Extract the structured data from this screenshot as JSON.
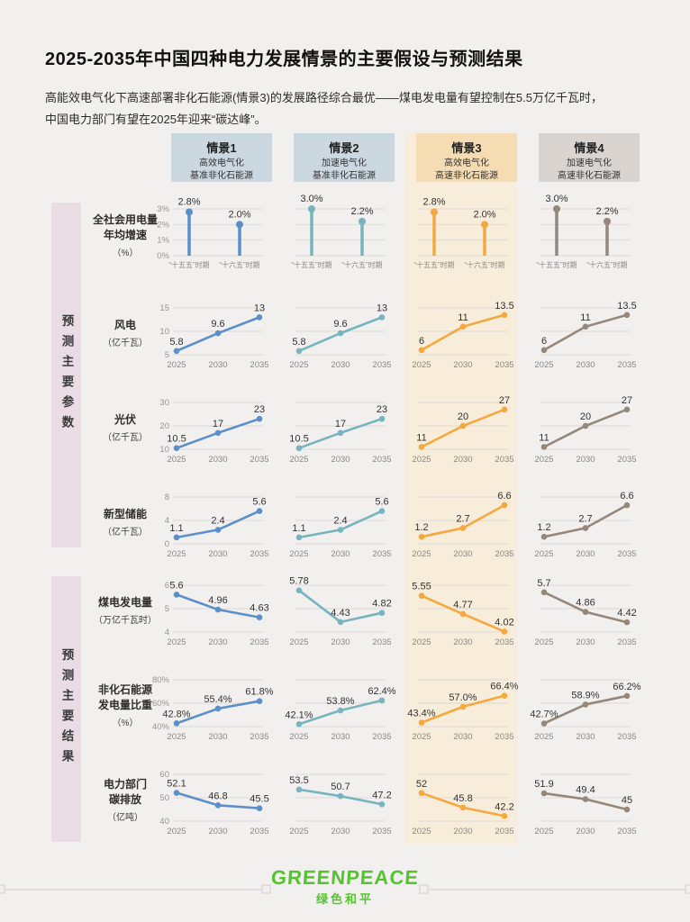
{
  "page": {
    "title": "2025-2035年中国四种电力发展情景的主要假设与预测结果",
    "subtitle_line1": "高能效电气化下高速部署非化石能源(情景3)的发展路径综合最优——煤电发电量有望控制在5.5万亿千瓦时，",
    "subtitle_line2": "中国电力部门有望在2025年迎来“碳达峰”。"
  },
  "colors": {
    "page_bg": "#f2f0ee",
    "scenario3_column_bg": "#f7edda",
    "section_band_bg": "#e9dce4",
    "gridline": "#ddd9d4",
    "value_label": "#333333",
    "logo_green": "#55c32f"
  },
  "scenarios": [
    {
      "label": "情景1",
      "line1": "高效电气化",
      "line2": "基准非化石能源",
      "color": "#5b8fc9",
      "header_bg": "#ccd8e0",
      "highlighted": false
    },
    {
      "label": "情景2",
      "line1": "加速电气化",
      "line2": "基准非化石能源",
      "color": "#76b4bf",
      "header_bg": "#ccd8e0",
      "highlighted": false
    },
    {
      "label": "情景3",
      "line1": "高效电气化",
      "line2": "高速非化石能源",
      "color": "#f4a83e",
      "header_bg": "#f5dcb2",
      "highlighted": true
    },
    {
      "label": "情景4",
      "line1": "加速电气化",
      "line2": "高速非化石能源",
      "color": "#95877a",
      "header_bg": "#d9d4d0",
      "highlighted": false
    }
  ],
  "sections": [
    {
      "label": "预测主要参数"
    },
    {
      "label": "预测主要结果"
    }
  ],
  "footer": {
    "logo_text": "GREENPEACE",
    "logo_subtext": "绿色和平"
  },
  "chart_data": [
    {
      "id": "electricity-demand-growth",
      "type": "lollipop",
      "name_lines": [
        "全社会用电量",
        "年均增速"
      ],
      "unit": "（%）",
      "categories": [
        "“十五五”时期",
        "“十六五”时期"
      ],
      "yticks": {
        "values": [
          0,
          1,
          2,
          3
        ],
        "labels": [
          "0%",
          "1%",
          "2%",
          "3%"
        ]
      },
      "series": [
        {
          "scenario": "情景1",
          "values": [
            2.8,
            2.0
          ],
          "labels": [
            "2.8%",
            "2.0%"
          ]
        },
        {
          "scenario": "情景2",
          "values": [
            3.0,
            2.2
          ],
          "labels": [
            "3.0%",
            "2.2%"
          ]
        },
        {
          "scenario": "情景3",
          "values": [
            2.8,
            2.0
          ],
          "labels": [
            "2.8%",
            "2.0%"
          ]
        },
        {
          "scenario": "情景4",
          "values": [
            3.0,
            2.2
          ],
          "labels": [
            "3.0%",
            "2.2%"
          ]
        }
      ]
    },
    {
      "id": "wind-power",
      "type": "line",
      "name_lines": [
        "风电"
      ],
      "unit": "（亿千瓦）",
      "categories": [
        "2025",
        "2030",
        "2035"
      ],
      "yticks": {
        "values": [
          5,
          10,
          15
        ],
        "labels": [
          "5",
          "10",
          "15"
        ]
      },
      "series": [
        {
          "scenario": "情景1",
          "values": [
            5.8,
            9.6,
            13
          ],
          "labels": [
            "5.8",
            "9.6",
            "13"
          ]
        },
        {
          "scenario": "情景2",
          "values": [
            5.8,
            9.6,
            13
          ],
          "labels": [
            "5.8",
            "9.6",
            "13"
          ]
        },
        {
          "scenario": "情景3",
          "values": [
            6,
            11,
            13.5
          ],
          "labels": [
            "6",
            "11",
            "13.5"
          ]
        },
        {
          "scenario": "情景4",
          "values": [
            6,
            11,
            13.5
          ],
          "labels": [
            "6",
            "11",
            "13.5"
          ]
        }
      ]
    },
    {
      "id": "solar-pv",
      "type": "line",
      "name_lines": [
        "光伏"
      ],
      "unit": "（亿千瓦）",
      "categories": [
        "2025",
        "2030",
        "2035"
      ],
      "yticks": {
        "values": [
          10,
          20,
          30
        ],
        "labels": [
          "10",
          "20",
          "30"
        ]
      },
      "series": [
        {
          "scenario": "情景1",
          "values": [
            10.5,
            17,
            23
          ],
          "labels": [
            "10.5",
            "17",
            "23"
          ]
        },
        {
          "scenario": "情景2",
          "values": [
            10.5,
            17,
            23
          ],
          "labels": [
            "10.5",
            "17",
            "23"
          ]
        },
        {
          "scenario": "情景3",
          "values": [
            11,
            20,
            27
          ],
          "labels": [
            "11",
            "20",
            "27"
          ]
        },
        {
          "scenario": "情景4",
          "values": [
            11,
            20,
            27
          ],
          "labels": [
            "11",
            "20",
            "27"
          ]
        }
      ]
    },
    {
      "id": "new-energy-storage",
      "type": "line",
      "name_lines": [
        "新型储能"
      ],
      "unit": "（亿千瓦）",
      "categories": [
        "2025",
        "2030",
        "2035"
      ],
      "yticks": {
        "values": [
          0,
          4,
          8
        ],
        "labels": [
          "0",
          "4",
          "8"
        ]
      },
      "series": [
        {
          "scenario": "情景1",
          "values": [
            1.1,
            2.4,
            5.6
          ],
          "labels": [
            "1.1",
            "2.4",
            "5.6"
          ]
        },
        {
          "scenario": "情景2",
          "values": [
            1.1,
            2.4,
            5.6
          ],
          "labels": [
            "1.1",
            "2.4",
            "5.6"
          ]
        },
        {
          "scenario": "情景3",
          "values": [
            1.2,
            2.7,
            6.6
          ],
          "labels": [
            "1.2",
            "2.7",
            "6.6"
          ]
        },
        {
          "scenario": "情景4",
          "values": [
            1.2,
            2.7,
            6.6
          ],
          "labels": [
            "1.2",
            "2.7",
            "6.6"
          ]
        }
      ]
    },
    {
      "id": "coal-power-generation",
      "type": "line",
      "name_lines": [
        "煤电发电量"
      ],
      "unit": "（万亿千瓦时）",
      "categories": [
        "2025",
        "2030",
        "2035"
      ],
      "yticks": {
        "values": [
          4,
          5,
          6
        ],
        "labels": [
          "4",
          "5",
          "6"
        ]
      },
      "series": [
        {
          "scenario": "情景1",
          "values": [
            5.6,
            4.96,
            4.63
          ],
          "labels": [
            "5.6",
            "4.96",
            "4.63"
          ]
        },
        {
          "scenario": "情景2",
          "values": [
            5.78,
            4.43,
            4.82
          ],
          "labels": [
            "5.78",
            "4.43",
            "4.82"
          ]
        },
        {
          "scenario": "情景3",
          "values": [
            5.55,
            4.77,
            4.02
          ],
          "labels": [
            "5.55",
            "4.77",
            "4.02"
          ]
        },
        {
          "scenario": "情景4",
          "values": [
            5.7,
            4.86,
            4.42
          ],
          "labels": [
            "5.7",
            "4.86",
            "4.42"
          ]
        }
      ]
    },
    {
      "id": "non-fossil-generation-share",
      "type": "line",
      "name_lines": [
        "非化石能源",
        "发电量比重"
      ],
      "unit": "（%）",
      "categories": [
        "2025",
        "2030",
        "2035"
      ],
      "yticks": {
        "values": [
          40,
          60,
          80
        ],
        "labels": [
          "40%",
          "60%",
          "80%"
        ]
      },
      "series": [
        {
          "scenario": "情景1",
          "values": [
            42.8,
            55.4,
            61.8
          ],
          "labels": [
            "42.8%",
            "55.4%",
            "61.8%"
          ]
        },
        {
          "scenario": "情景2",
          "values": [
            42.1,
            53.8,
            62.4
          ],
          "labels": [
            "42.1%",
            "53.8%",
            "62.4%"
          ]
        },
        {
          "scenario": "情景3",
          "values": [
            43.4,
            57.0,
            66.4
          ],
          "labels": [
            "43.4%",
            "57.0%",
            "66.4%"
          ]
        },
        {
          "scenario": "情景4",
          "values": [
            42.7,
            58.9,
            66.2
          ],
          "labels": [
            "42.7%",
            "58.9%",
            "66.2%"
          ]
        }
      ]
    },
    {
      "id": "power-sector-carbon-emissions",
      "type": "line",
      "name_lines": [
        "电力部门",
        "碳排放"
      ],
      "unit": "（亿吨）",
      "categories": [
        "2025",
        "2030",
        "2035"
      ],
      "yticks": {
        "values": [
          40,
          50,
          60
        ],
        "labels": [
          "40",
          "50",
          "60"
        ]
      },
      "series": [
        {
          "scenario": "情景1",
          "values": [
            52.1,
            46.8,
            45.5
          ],
          "labels": [
            "52.1",
            "46.8",
            "45.5"
          ]
        },
        {
          "scenario": "情景2",
          "values": [
            53.5,
            50.7,
            47.2
          ],
          "labels": [
            "53.5",
            "50.7",
            "47.2"
          ]
        },
        {
          "scenario": "情景3",
          "values": [
            52,
            45.8,
            42.2
          ],
          "labels": [
            "52",
            "45.8",
            "42.2"
          ]
        },
        {
          "scenario": "情景4",
          "values": [
            51.9,
            49.4,
            45
          ],
          "labels": [
            "51.9",
            "49.4",
            "45"
          ]
        }
      ]
    }
  ]
}
